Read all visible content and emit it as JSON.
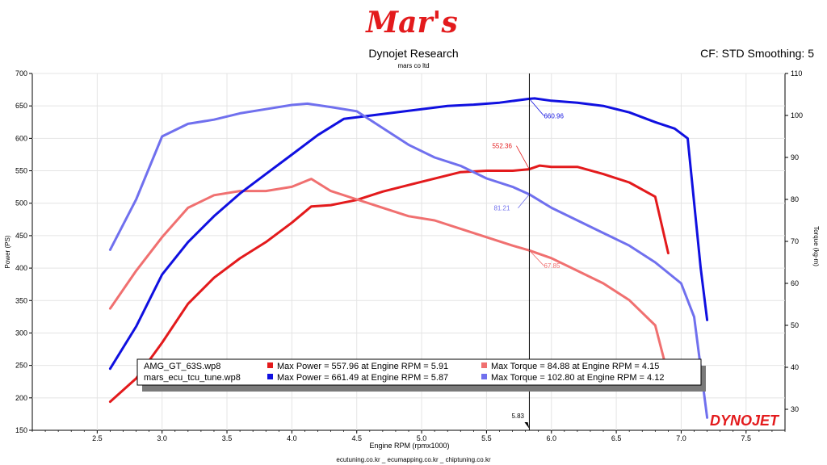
{
  "header": {
    "logo_text": "Mar's",
    "title": "Dynojet Research",
    "subtitle": "mars co ltd",
    "right_info": "CF: STD Smoothing: 5"
  },
  "footer": {
    "links": "ecutuning.co.kr _ ecumapping.co.kr _ chiptuning.co.kr",
    "brand": "DYNOJET"
  },
  "colors": {
    "stock_power": "#e31a1c",
    "stock_torque": "#f07070",
    "tune_power": "#1010e0",
    "tune_torque": "#7070ee"
  },
  "chart_data": {
    "type": "line",
    "xlabel": "Engine RPM (rpmx1000)",
    "ylabel_left": "Power (PS)",
    "ylabel_right": "Torque (kg-m)",
    "xlim": [
      2.0,
      7.8
    ],
    "ylim_left": [
      150,
      700
    ],
    "ylim_right": [
      25,
      110
    ],
    "x_ticks": [
      2.5,
      3.0,
      3.5,
      4.0,
      4.5,
      5.0,
      5.5,
      6.0,
      6.5,
      7.0,
      7.5
    ],
    "y_left_ticks": [
      150,
      200,
      250,
      300,
      350,
      400,
      450,
      500,
      550,
      600,
      650,
      700
    ],
    "y_right_ticks": [
      30,
      40,
      50,
      60,
      70,
      80,
      90,
      100,
      110
    ],
    "x_tick_labels": [
      "2.5",
      "3.0",
      "3.5",
      "4.0",
      "4.5",
      "5.0",
      "5.5",
      "6.0",
      "6.5",
      "7.0",
      "7.5"
    ],
    "y_left_tick_labels": [
      "150",
      "200",
      "250",
      "300",
      "350",
      "400",
      "450",
      "500",
      "550",
      "600",
      "650",
      "700"
    ],
    "y_right_tick_labels": [
      "30",
      "40",
      "50",
      "60",
      "70",
      "80",
      "90",
      "100",
      "110"
    ],
    "grid": true,
    "cursor": {
      "x": 5.83,
      "label": "5.83"
    },
    "series": [
      {
        "name": "AMG_GT_63S.wp8 Power",
        "axis": "left",
        "color": "#e31a1c",
        "x": [
          2.6,
          2.8,
          3.0,
          3.2,
          3.4,
          3.6,
          3.8,
          4.0,
          4.15,
          4.3,
          4.5,
          4.7,
          4.9,
          5.1,
          5.3,
          5.5,
          5.7,
          5.83,
          5.91,
          6.0,
          6.2,
          6.4,
          6.6,
          6.8,
          6.9
        ],
        "y": [
          194,
          230,
          285,
          345,
          385,
          415,
          440,
          470,
          495,
          497,
          505,
          518,
          528,
          538,
          548,
          550,
          550,
          552.36,
          557.96,
          556,
          556,
          545,
          532,
          510,
          423
        ]
      },
      {
        "name": "AMG_GT_63S.wp8 Torque",
        "axis": "right",
        "color": "#f07070",
        "x": [
          2.6,
          2.8,
          3.0,
          3.2,
          3.4,
          3.6,
          3.8,
          4.0,
          4.15,
          4.3,
          4.5,
          4.7,
          4.9,
          5.1,
          5.3,
          5.5,
          5.7,
          5.83,
          6.0,
          6.2,
          6.4,
          6.6,
          6.8,
          6.9
        ],
        "y": [
          54,
          63,
          71,
          78,
          81,
          82,
          82,
          83,
          84.88,
          82,
          80,
          78,
          76,
          75,
          73,
          71,
          69,
          67.85,
          66,
          63,
          60,
          56,
          50,
          38
        ]
      },
      {
        "name": "mars_ecu_tcu_tune.wp8 Power",
        "axis": "left",
        "color": "#1010e0",
        "x": [
          2.6,
          2.8,
          3.0,
          3.2,
          3.4,
          3.6,
          3.8,
          4.0,
          4.2,
          4.4,
          4.6,
          4.8,
          5.0,
          5.2,
          5.4,
          5.6,
          5.83,
          5.87,
          6.0,
          6.2,
          6.4,
          6.6,
          6.8,
          6.95,
          7.05,
          7.15,
          7.2
        ],
        "y": [
          245,
          310,
          390,
          440,
          480,
          515,
          545,
          575,
          605,
          630,
          635,
          640,
          645,
          650,
          652,
          655,
          660.96,
          661.49,
          658,
          655,
          650,
          640,
          625,
          615,
          600,
          400,
          320
        ]
      },
      {
        "name": "mars_ecu_tcu_tune.wp8 Torque",
        "axis": "right",
        "color": "#7070ee",
        "x": [
          2.6,
          2.8,
          3.0,
          3.2,
          3.4,
          3.6,
          3.8,
          4.0,
          4.12,
          4.3,
          4.5,
          4.7,
          4.9,
          5.1,
          5.3,
          5.5,
          5.7,
          5.83,
          6.0,
          6.2,
          6.4,
          6.6,
          6.8,
          7.0,
          7.1,
          7.2
        ],
        "y": [
          68,
          80,
          95,
          98,
          99,
          100.5,
          101.5,
          102.5,
          102.8,
          102,
          101,
          97,
          93,
          90,
          88,
          85,
          83,
          81.21,
          78,
          75,
          72,
          69,
          65,
          60,
          52,
          28
        ]
      }
    ],
    "point_labels": [
      {
        "series": 0,
        "x": 5.83,
        "y": 552.36,
        "text": "552.36"
      },
      {
        "series": 1,
        "x": 5.83,
        "y": 67.85,
        "text": "67.85"
      },
      {
        "series": 2,
        "x": 5.83,
        "y": 660.96,
        "text": "660.96"
      },
      {
        "series": 3,
        "x": 5.83,
        "y": 81.21,
        "text": "81.21"
      }
    ],
    "legend": {
      "position": "bottom-left",
      "rows": [
        {
          "file": "AMG_GT_63S.wp8",
          "power_text": "Max Power = 557.96 at Engine RPM = 5.91",
          "torque_text": "Max Torque = 84.88 at Engine RPM = 4.15",
          "power_color": "#e31a1c",
          "torque_color": "#f07070"
        },
        {
          "file": "mars_ecu_tcu_tune.wp8",
          "power_text": "Max Power = 661.49 at Engine RPM = 5.87",
          "torque_text": "Max Torque = 102.80 at Engine RPM = 4.12",
          "power_color": "#1010e0",
          "torque_color": "#7070ee"
        }
      ]
    }
  }
}
